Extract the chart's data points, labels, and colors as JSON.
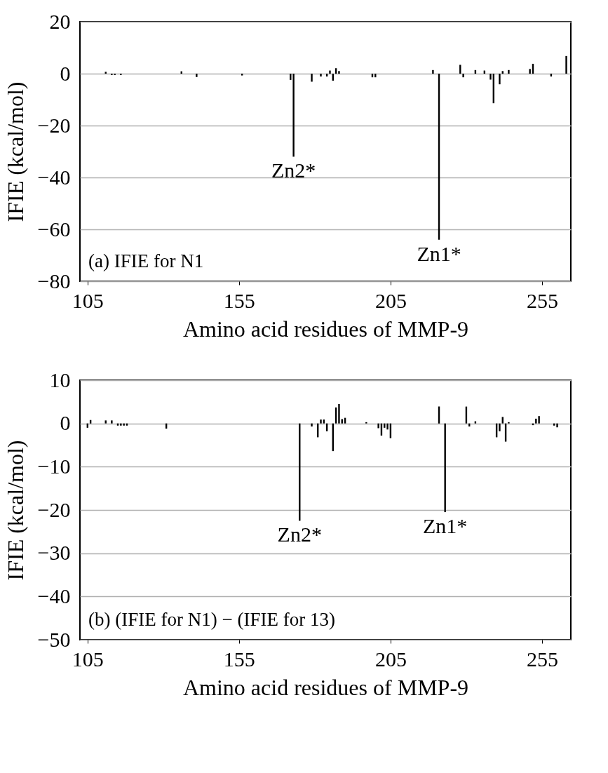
{
  "chart_data": [
    {
      "type": "bar",
      "xlabel": "Amino acid residues of MMP-9",
      "ylabel": "IFIE (kcal/mol)",
      "xlim": [
        102.5,
        264.5
      ],
      "xticks": [
        105,
        155,
        205,
        255
      ],
      "ylim": [
        -80,
        20
      ],
      "yticks": [
        -80,
        -60,
        -40,
        -20,
        0,
        20
      ],
      "grid": "y",
      "series": [
        {
          "color": "#000000",
          "x": [
            111,
            113,
            114,
            116,
            136,
            141,
            156,
            172,
            173,
            179,
            182,
            184,
            185,
            186,
            187,
            188,
            199,
            200,
            219,
            221,
            228,
            229,
            233,
            236,
            238,
            239,
            241,
            242,
            244,
            251,
            252,
            258,
            263
          ],
          "values": [
            0.7,
            -0.5,
            -0.5,
            -0.5,
            0.9,
            -1.3,
            -0.7,
            -2.4,
            -32,
            -3.1,
            -1.1,
            -1.1,
            1.2,
            -2.7,
            2.1,
            1.0,
            -1.4,
            -1.4,
            1.4,
            -64,
            3.4,
            -1.4,
            1.4,
            1.2,
            -2.3,
            -11.4,
            -4.1,
            1.0,
            1.4,
            1.8,
            3.8,
            -1.1,
            6.8
          ]
        }
      ],
      "annotations": [
        {
          "text": "Zn2*",
          "x": 173,
          "y": -32
        },
        {
          "text": "Zn1*",
          "x": 221,
          "y": -64
        },
        "(a) IFIE for N1"
      ]
    },
    {
      "type": "bar",
      "xlabel": "Amino acid residues of MMP-9",
      "ylabel": "IFIE (kcal/mol)",
      "xlim": [
        102.5,
        264.5
      ],
      "xticks": [
        105,
        155,
        205,
        255
      ],
      "ylim": [
        -50,
        10
      ],
      "yticks": [
        -50,
        -40,
        -30,
        -20,
        -10,
        0,
        10
      ],
      "grid": "y",
      "series": [
        {
          "color": "#000000",
          "x": [
            105,
            106,
            111,
            113,
            115,
            116,
            117,
            118,
            131,
            175,
            179,
            181,
            182,
            183,
            184,
            186,
            187,
            188,
            189,
            190,
            197,
            201,
            202,
            203,
            204,
            205,
            221,
            223,
            230,
            231,
            233,
            240,
            241,
            242,
            243,
            244,
            252,
            253,
            254,
            259,
            260
          ],
          "values": [
            -1.0,
            0.8,
            0.7,
            0.7,
            -0.5,
            -0.5,
            -0.5,
            -0.5,
            -1.2,
            -22.5,
            -0.7,
            -3.2,
            0.9,
            0.9,
            -1.8,
            -6.4,
            3.7,
            4.5,
            1.0,
            1.3,
            0.3,
            -1.1,
            -2.8,
            -1.0,
            -1.4,
            -3.4,
            3.9,
            -20.5,
            3.9,
            -0.7,
            0.5,
            -3.2,
            -1.8,
            1.5,
            -4.2,
            0.3,
            -0.4,
            1.1,
            1.7,
            -0.5,
            -0.9
          ]
        }
      ],
      "annotations": [
        {
          "text": "Zn2*",
          "x": 175,
          "y": -22.5
        },
        {
          "text": "Zn1*",
          "x": 223,
          "y": -20.5
        },
        "(b) (IFIE for N1) − (IFIE for 13)"
      ]
    }
  ]
}
